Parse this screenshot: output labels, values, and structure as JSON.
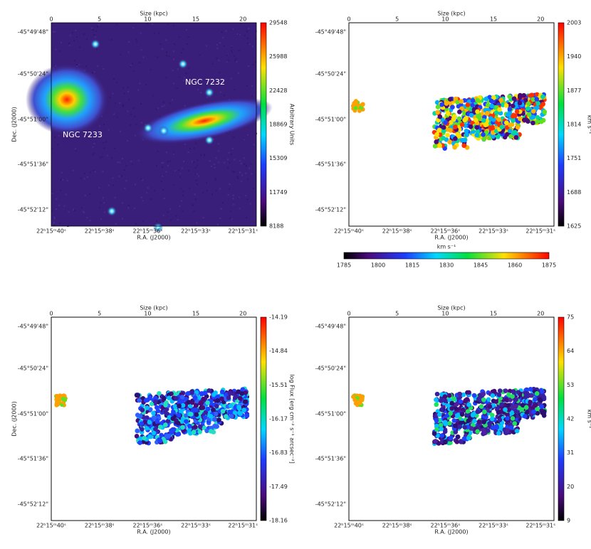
{
  "panels": [
    {
      "size_label": "Size (kpc)",
      "size_ticks": [
        "0",
        "5",
        "10",
        "15",
        "20"
      ],
      "dec_label": "Dec. (J2000)",
      "dec_ticks": [
        "-45°49'48\"",
        "-45°50'24\"",
        "-45°51'00\"",
        "-45°51'36\"",
        "-45°52'12\""
      ],
      "ra_label": "R.A. (J2000)",
      "ra_ticks": [
        "22ʰ15ᵐ40ˢ",
        "22ʰ15ᵐ38ˢ",
        "22ʰ15ᵐ36ˢ",
        "22ʰ15ᵐ33ˢ",
        "22ʰ15ᵐ31ˢ"
      ],
      "colorbar_label": "Arbitrary Units",
      "colorbar_ticks": [
        "29548",
        "25988",
        "22428",
        "18869",
        "15309",
        "11749",
        "8188"
      ],
      "annotations": [
        "NGC 7232",
        "NGC 7233"
      ]
    },
    {
      "size_label": "Size (kpc)",
      "size_ticks": [
        "0",
        "5",
        "10",
        "15",
        "20"
      ],
      "dec_ticks": [
        "-45°49'48\"",
        "-45°50'24\"",
        "-45°51'00\"",
        "-45°51'36\"",
        "-45°52'12\""
      ],
      "ra_label": "R.A. (J2000)",
      "ra_ticks": [
        "22ʰ15ᵐ40ˢ",
        "22ʰ15ᵐ38ˢ",
        "22ʰ15ᵐ36ˢ",
        "22ʰ15ᵐ33ˢ",
        "22ʰ15ᵐ31ˢ"
      ],
      "colorbar_label": "km s⁻¹",
      "colorbar_ticks": [
        "2003",
        "1940",
        "1877",
        "1814",
        "1751",
        "1688",
        "1625"
      ]
    },
    {
      "size_label": "Size (kpc)",
      "size_ticks": [
        "0",
        "5",
        "10",
        "15",
        "20"
      ],
      "dec_label": "Dec. (J2000)",
      "dec_ticks": [
        "-45°49'48\"",
        "-45°50'24\"",
        "-45°51'00\"",
        "-45°51'36\"",
        "-45°52'12\""
      ],
      "ra_label": "R.A. (J2000)",
      "ra_ticks": [
        "22ʰ15ᵐ40ˢ",
        "22ʰ15ᵐ38ˢ",
        "22ʰ15ᵐ36ˢ",
        "22ʰ15ᵐ33ˢ",
        "22ʰ15ᵐ31ˢ"
      ],
      "colorbar_label": "log Flux [erg cm⁻² s⁻¹ arcsec⁻²]",
      "colorbar_ticks": [
        "-14.19",
        "-14.84",
        "-15.51",
        "-16.17",
        "-16.83",
        "-17.49",
        "-18.16"
      ]
    },
    {
      "size_label": "Size (kpc)",
      "size_ticks": [
        "0",
        "5",
        "10",
        "15",
        "20"
      ],
      "dec_ticks": [
        "-45°49'48\"",
        "-45°50'24\"",
        "-45°51'00\"",
        "-45°51'36\"",
        "-45°52'12\""
      ],
      "ra_label": "R.A. (J2000)",
      "ra_ticks": [
        "22ʰ15ᵐ40ˢ",
        "22ʰ15ᵐ38ˢ",
        "22ʰ15ᵐ36ˢ",
        "22ʰ15ᵐ33ˢ",
        "22ʰ15ᵐ31ˢ"
      ],
      "colorbar_label": "km s⁻¹",
      "colorbar_ticks": [
        "75",
        "64",
        "53",
        "42",
        "31",
        "20",
        "9"
      ]
    }
  ],
  "hbar": {
    "label": "km s⁻¹",
    "ticks": [
      "1785",
      "1800",
      "1815",
      "1830",
      "1845",
      "1860",
      "1875"
    ]
  }
}
